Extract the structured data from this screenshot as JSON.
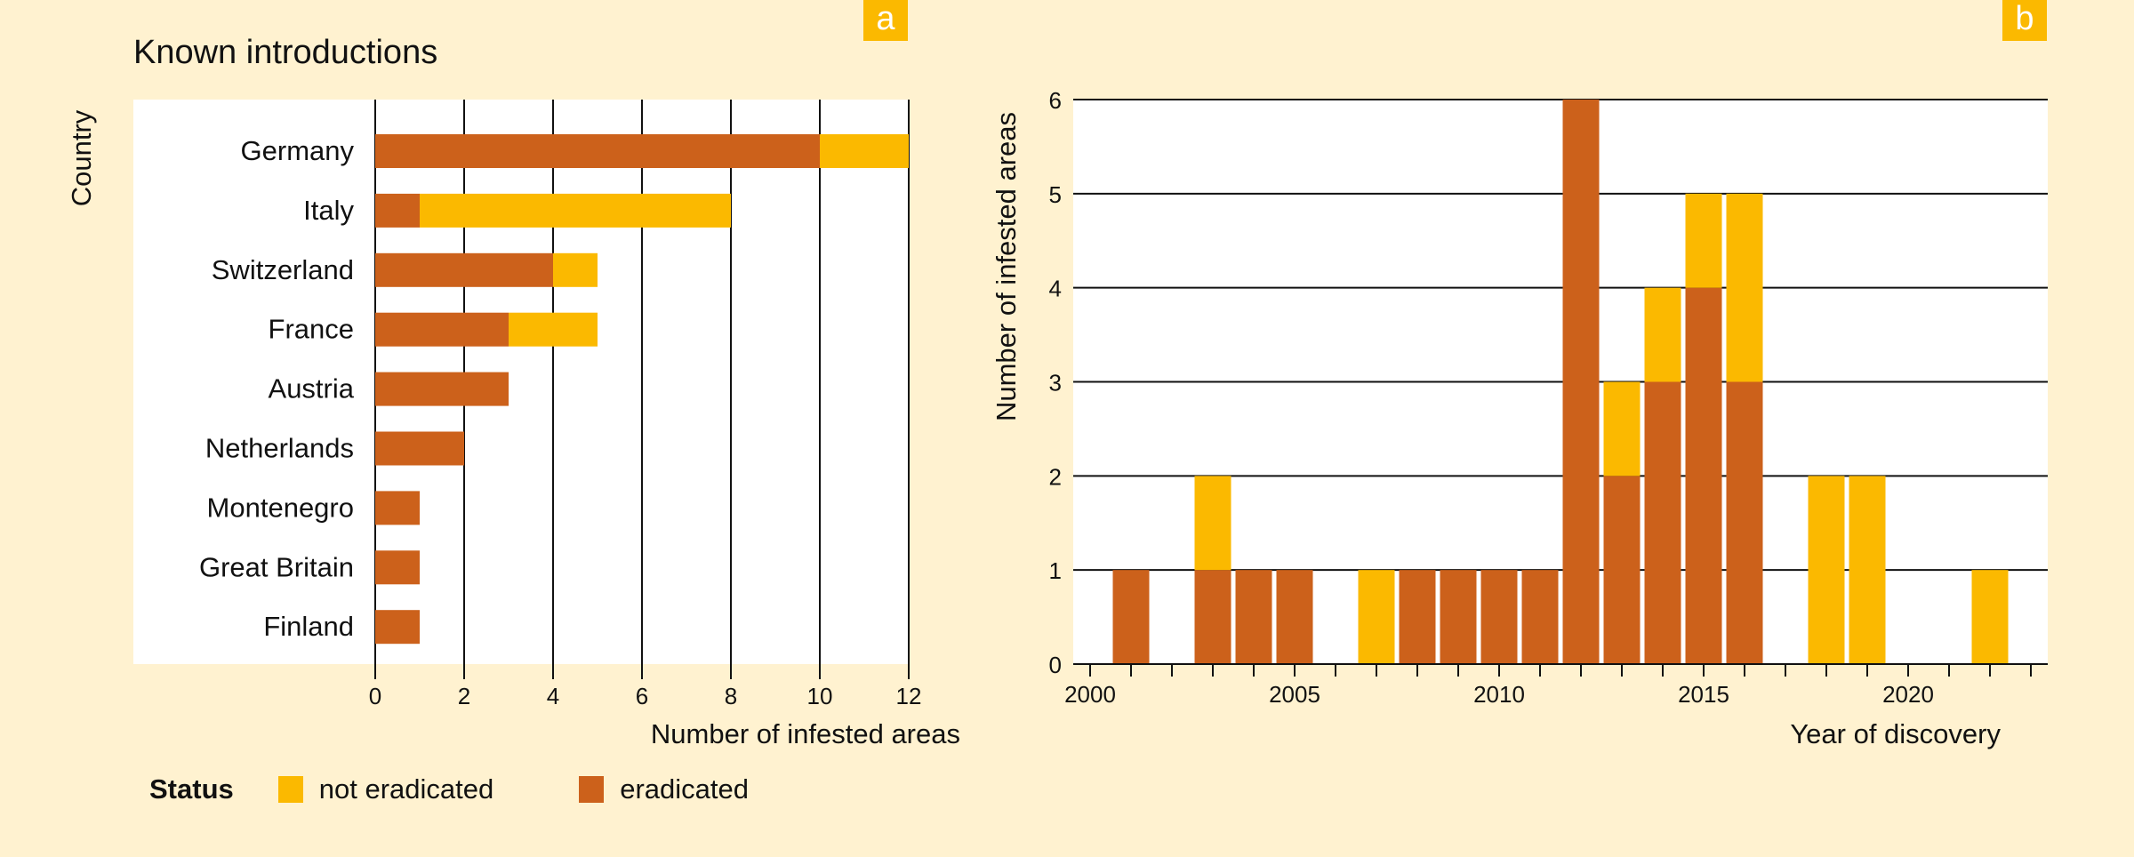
{
  "colors": {
    "eradicated": "#cc611b",
    "not_eradicated": "#fbb900",
    "badge": "#fbb900",
    "background": "#fff2d0"
  },
  "legend": {
    "title": "Status",
    "items": [
      {
        "label": "not eradicated",
        "key": "not_eradicated"
      },
      {
        "label": "eradicated",
        "key": "eradicated"
      }
    ]
  },
  "chart_data": [
    {
      "panel": "a",
      "type": "bar",
      "orientation": "horizontal",
      "stacked": true,
      "title": "Known introductions",
      "xlabel": "Number of infested areas",
      "ylabel": "Country",
      "xlim": [
        0,
        12
      ],
      "xticks": [
        0,
        2,
        4,
        6,
        8,
        10,
        12
      ],
      "grid": "vertical",
      "categories": [
        "Germany",
        "Italy",
        "Switzerland",
        "France",
        "Austria",
        "Netherlands",
        "Montenegro",
        "Great Britain",
        "Finland"
      ],
      "series": [
        {
          "name": "eradicated",
          "values": [
            10,
            1,
            4,
            3,
            3,
            2,
            1,
            1,
            1
          ]
        },
        {
          "name": "not eradicated",
          "values": [
            2,
            7,
            1,
            2,
            0,
            0,
            0,
            0,
            0
          ]
        }
      ]
    },
    {
      "panel": "b",
      "type": "bar",
      "stacked": true,
      "title": "",
      "xlabel": "Year of discovery",
      "ylabel": "Number of infested areas",
      "ylim": [
        0,
        6
      ],
      "yticks": [
        0,
        1,
        2,
        3,
        4,
        5,
        6
      ],
      "xlim": [
        2000,
        2023
      ],
      "xticklabels": [
        2000,
        2005,
        2010,
        2015,
        2020
      ],
      "grid": "horizontal",
      "x": [
        2001,
        2003,
        2004,
        2005,
        2007,
        2008,
        2009,
        2010,
        2011,
        2012,
        2013,
        2014,
        2015,
        2016,
        2018,
        2019,
        2022
      ],
      "series": [
        {
          "name": "eradicated",
          "values": [
            1,
            1,
            1,
            1,
            0,
            1,
            1,
            1,
            1,
            6,
            2,
            3,
            4,
            3,
            0,
            0,
            0
          ]
        },
        {
          "name": "not eradicated",
          "values": [
            0,
            1,
            0,
            0,
            1,
            0,
            0,
            0,
            0,
            0,
            1,
            1,
            1,
            2,
            2,
            2,
            1
          ]
        }
      ]
    }
  ],
  "badges": {
    "a": "a",
    "b": "b"
  }
}
